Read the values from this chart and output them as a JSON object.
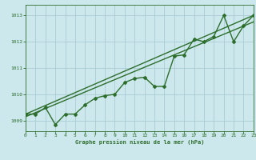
{
  "title": "Graphe pression niveau de la mer (hPa)",
  "bg_color": "#cce8ec",
  "grid_color": "#aaccd4",
  "line_color": "#2d6e2d",
  "xlim": [
    0,
    23
  ],
  "ylim": [
    1008.6,
    1013.4
  ],
  "yticks": [
    1009,
    1010,
    1011,
    1012,
    1013
  ],
  "xticks": [
    0,
    1,
    2,
    3,
    4,
    5,
    6,
    7,
    8,
    9,
    10,
    11,
    12,
    13,
    14,
    15,
    16,
    17,
    18,
    19,
    20,
    21,
    22,
    23
  ],
  "line1_x": [
    0,
    23
  ],
  "line1_y": [
    1009.25,
    1013.0
  ],
  "line2_x": [
    0,
    23
  ],
  "line2_y": [
    1009.15,
    1012.75
  ],
  "series_x": [
    0,
    1,
    2,
    3,
    4,
    5,
    6,
    7,
    8,
    9,
    10,
    11,
    12,
    13,
    14,
    15,
    16,
    17,
    18,
    19,
    20,
    21,
    22,
    23
  ],
  "series_y": [
    1009.25,
    1009.25,
    1009.5,
    1008.85,
    1009.25,
    1009.25,
    1009.6,
    1009.85,
    1009.95,
    1010.0,
    1010.45,
    1010.6,
    1010.65,
    1010.3,
    1010.3,
    1011.45,
    1011.5,
    1012.1,
    1012.0,
    1012.2,
    1013.0,
    1012.0,
    1012.6,
    1013.0
  ]
}
